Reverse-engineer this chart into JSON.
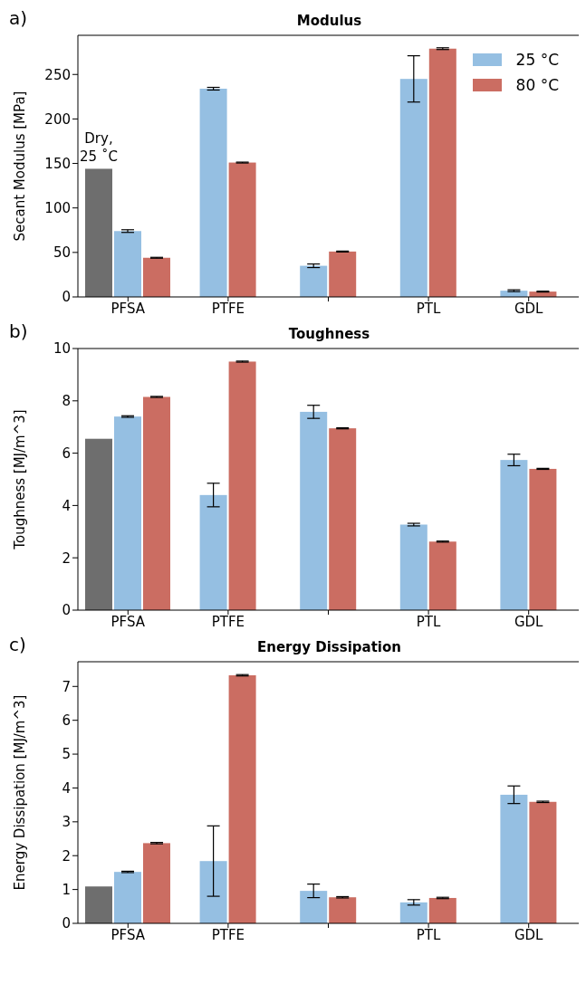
{
  "chart_data": [
    {
      "type": "bar",
      "title": "Modulus",
      "ylabel": "Secant Modulus [MPa]",
      "categories": [
        "PFSA",
        "PTFE",
        null,
        "PTL",
        "GDL"
      ],
      "ylim": [
        0,
        294
      ],
      "yticks": [
        0,
        50,
        100,
        150,
        200,
        250
      ],
      "legend": "top right",
      "series": [
        {
          "color": "#6e6e6e",
          "values": [
            144,
            null,
            null,
            null,
            null
          ]
        },
        {
          "name": "25 °C",
          "color": "#95bfe2",
          "values": [
            74,
            234,
            35,
            245,
            7
          ],
          "errors": [
            1.5,
            1.5,
            2,
            26,
            1
          ]
        },
        {
          "name": "80 °C",
          "color": "#cb6d62",
          "values": [
            44,
            151,
            51,
            279,
            6
          ],
          "errors": [
            0.5,
            0.5,
            0.5,
            1,
            0.5
          ]
        }
      ],
      "annotations": [
        "a)",
        "Dry,\n25 ˚C"
      ]
    },
    {
      "type": "bar",
      "title": "Toughness",
      "ylabel": "Toughness [MJ/m^3]",
      "categories": [
        "PFSA",
        "PTFE",
        null,
        "PTL",
        "GDL"
      ],
      "ylim": [
        0,
        10
      ],
      "yticks": [
        0,
        2,
        4,
        6,
        8,
        10
      ],
      "series": [
        {
          "color": "#6e6e6e",
          "values": [
            6.55,
            null,
            null,
            null,
            null
          ]
        },
        {
          "color": "#95bfe2",
          "values": [
            7.4,
            4.4,
            7.58,
            3.27,
            5.74
          ],
          "errors": [
            0.03,
            0.45,
            0.25,
            0.05,
            0.22
          ]
        },
        {
          "color": "#cb6d62",
          "values": [
            8.15,
            9.5,
            6.95,
            2.62,
            5.4
          ],
          "errors": [
            0.02,
            0.02,
            0.02,
            0.02,
            0.02
          ]
        }
      ],
      "annotations": [
        "b)"
      ]
    },
    {
      "type": "bar",
      "title": "Energy Dissipation",
      "ylabel": "Energy Dissipation [MJ/m^3]",
      "categories": [
        "PFSA",
        "PTFE",
        null,
        "PTL",
        "GDL"
      ],
      "ylim": [
        0,
        7.73
      ],
      "yticks": [
        0,
        1,
        2,
        3,
        4,
        5,
        6,
        7
      ],
      "series": [
        {
          "color": "#6e6e6e",
          "values": [
            1.09,
            null,
            null,
            null,
            null
          ]
        },
        {
          "color": "#95bfe2",
          "values": [
            1.52,
            1.84,
            0.96,
            0.62,
            3.8
          ],
          "errors": [
            0.02,
            1.04,
            0.2,
            0.08,
            0.26
          ]
        },
        {
          "color": "#cb6d62",
          "values": [
            2.37,
            7.33,
            0.77,
            0.75,
            3.59
          ],
          "errors": [
            0.02,
            0.02,
            0.02,
            0.02,
            0.02
          ]
        }
      ],
      "annotations": [
        "c)"
      ]
    }
  ]
}
